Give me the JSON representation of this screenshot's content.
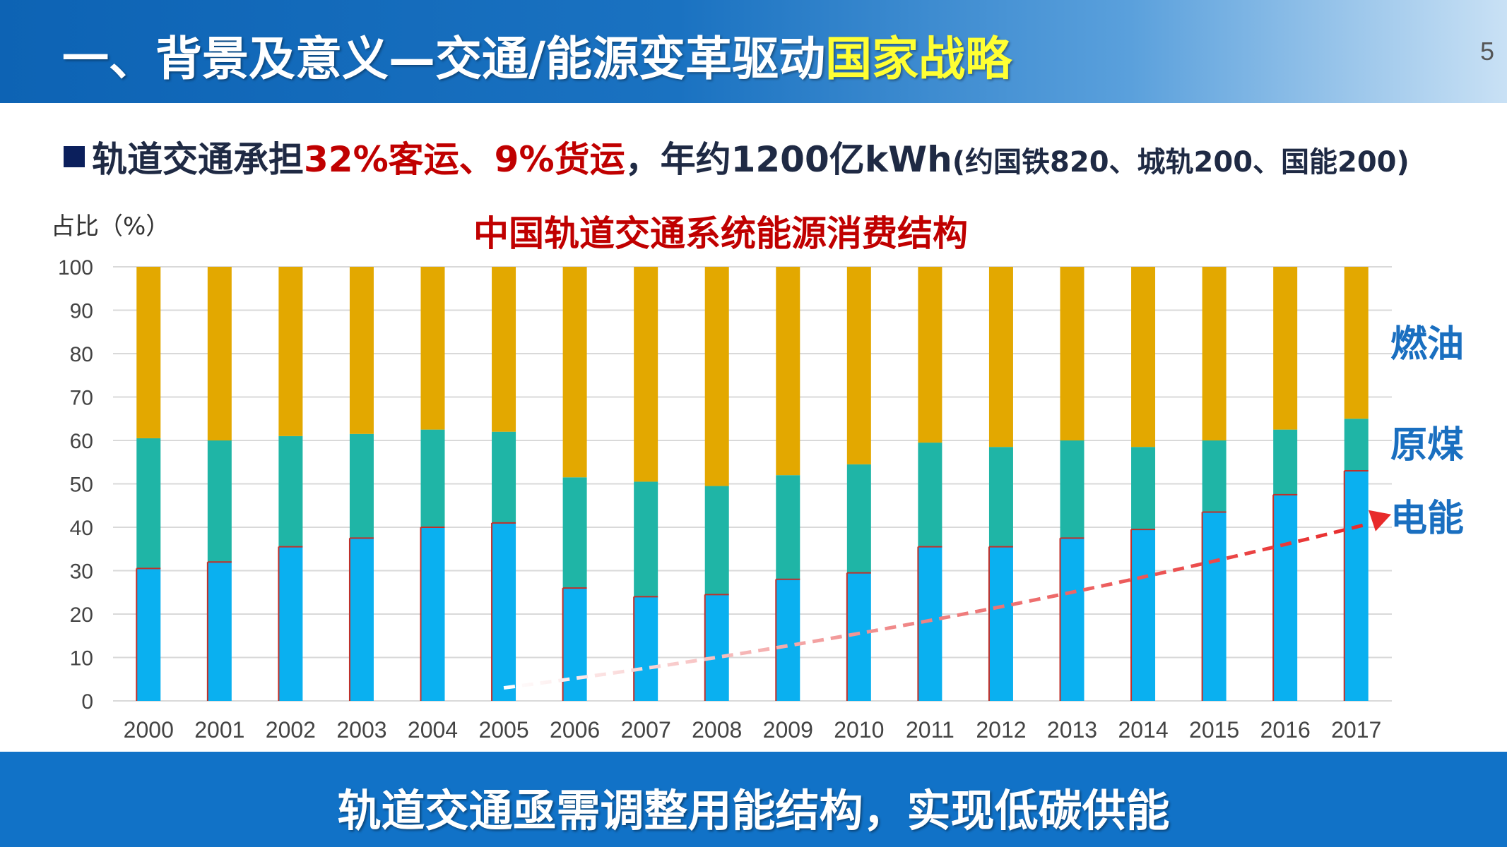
{
  "header": {
    "title_main": "一、背景及意义—交通/能源变革驱动",
    "title_highlight": "国家战略",
    "page_number": "5"
  },
  "summary": {
    "seg1": "轨道交通承担",
    "seg2": "32%客运、9%货运",
    "seg3": "，年约1200亿kWh",
    "seg4": "(约国铁820、城轨200、国能200)"
  },
  "footer": {
    "text": "轨道交通亟需调整用能结构，实现低碳供能"
  },
  "colors": {
    "electric": "#0ab0f0",
    "coal": "#1fb5a6",
    "oil": "#e3a800",
    "trend": "#e82a2a",
    "title_red": "#c00000",
    "legend_blue": "#1a6fc0"
  },
  "chart_data": {
    "type": "bar",
    "stacked": true,
    "title": "中国轨道交通系统能源消费结构",
    "ylabel": "占比（%）",
    "ylim": [
      0,
      100
    ],
    "yticks": [
      0,
      10,
      20,
      30,
      40,
      50,
      60,
      70,
      80,
      90,
      100
    ],
    "grid": true,
    "categories": [
      "2000",
      "2001",
      "2002",
      "2003",
      "2004",
      "2005",
      "2006",
      "2007",
      "2008",
      "2009",
      "2010",
      "2011",
      "2012",
      "2013",
      "2014",
      "2015",
      "2016",
      "2017"
    ],
    "series": [
      {
        "name": "电能",
        "values": [
          30.5,
          32,
          35.5,
          37.5,
          40,
          41,
          26,
          24,
          24.5,
          28,
          29.5,
          35.5,
          35.5,
          37.5,
          39.5,
          43.5,
          47.5,
          53
        ]
      },
      {
        "name": "原煤",
        "values": [
          30,
          28,
          25.5,
          24,
          22.5,
          21,
          25.5,
          26.5,
          25,
          24,
          25,
          24,
          23,
          22.5,
          19,
          16.5,
          15,
          12
        ]
      },
      {
        "name": "燃油",
        "values": [
          39.5,
          40,
          39,
          38.5,
          37.5,
          38,
          48.5,
          49.5,
          50.5,
          48,
          45.5,
          40.5,
          41.5,
          40,
          41.5,
          40,
          37.5,
          35
        ]
      }
    ],
    "annotations": [
      {
        "type": "trend-arrow",
        "from": [
          "2005",
          3
        ],
        "to": [
          "2017",
          42
        ]
      }
    ]
  }
}
